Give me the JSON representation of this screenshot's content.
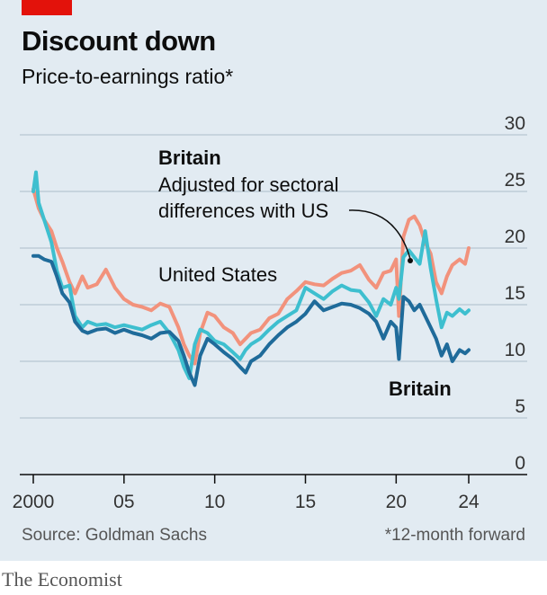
{
  "header": {
    "title": "Discount down",
    "subtitle": "Price-to-earnings ratio*"
  },
  "footer": {
    "source": "Source: Goldman Sachs",
    "footnote": "*12-month forward",
    "brand": "The Economist"
  },
  "colors": {
    "background": "#e2ebf2",
    "accent_red": "#e3120b",
    "britain": "#1f6b9a",
    "britain_adjusted": "#3ebfcf",
    "united_states": "#f2927c"
  },
  "chart_data": {
    "type": "line",
    "title": "Discount down",
    "subtitle": "Price-to-earnings ratio*",
    "xlabel": "",
    "ylabel": "",
    "xlim": [
      1999.8,
      2024.3
    ],
    "ylim": [
      0,
      30
    ],
    "y_ticks": [
      "0",
      "5",
      "10",
      "15",
      "20",
      "25",
      "30"
    ],
    "x_ticks": [
      {
        "value": 2000,
        "label": "2000"
      },
      {
        "value": 2005,
        "label": "05"
      },
      {
        "value": 2010,
        "label": "10"
      },
      {
        "value": 2015,
        "label": "15"
      },
      {
        "value": 2020,
        "label": "20"
      },
      {
        "value": 2024,
        "label": "24"
      }
    ],
    "grid": true,
    "annotations": {
      "britain_top": "Britain",
      "adjusted": [
        "Adjusted for sectoral",
        "differences with US"
      ],
      "us": "United States",
      "britain_bottom": "Britain"
    },
    "series": [
      {
        "name": "United States",
        "color": "#f2927c",
        "x": [
          2000,
          2000.3,
          2000.6,
          2001,
          2001.3,
          2001.6,
          2002,
          2002.3,
          2002.7,
          2003,
          2003.5,
          2004,
          2004.5,
          2005,
          2005.5,
          2006,
          2006.5,
          2007,
          2007.5,
          2008,
          2008.3,
          2008.6,
          2008.9,
          2009.2,
          2009.6,
          2010,
          2010.5,
          2011,
          2011.4,
          2011.7,
          2012,
          2012.5,
          2013,
          2013.5,
          2014,
          2014.5,
          2015,
          2015.5,
          2016,
          2016.5,
          2017,
          2017.5,
          2018,
          2018.5,
          2018.9,
          2019.3,
          2019.7,
          2020.0,
          2020.15,
          2020.4,
          2020.7,
          2021.0,
          2021.3,
          2021.6,
          2021.9,
          2022.2,
          2022.5,
          2022.8,
          2023.1,
          2023.5,
          2023.8,
          2024.0
        ],
        "y": [
          25.2,
          23.5,
          22.5,
          21.5,
          20.0,
          18.8,
          17.0,
          16.0,
          17.5,
          16.5,
          16.8,
          18.1,
          16.5,
          15.5,
          15.0,
          14.8,
          14.5,
          15.1,
          14.8,
          13.0,
          11.5,
          10.5,
          9.8,
          12.5,
          14.3,
          14.0,
          13.0,
          12.5,
          11.5,
          12.0,
          12.5,
          12.8,
          13.8,
          14.2,
          15.5,
          16.2,
          17.0,
          16.8,
          16.7,
          17.3,
          17.8,
          18.0,
          18.5,
          17.2,
          16.5,
          17.8,
          18.0,
          19.0,
          14.0,
          21.0,
          22.5,
          22.8,
          22.0,
          20.5,
          19.5,
          17.0,
          16.0,
          17.5,
          18.5,
          19.0,
          18.6,
          20.0
        ]
      },
      {
        "name": "Britain, adjusted for sectoral differences with US",
        "color": "#3ebfcf",
        "x": [
          2000,
          2000.15,
          2000.3,
          2000.6,
          2001,
          2001.3,
          2001.6,
          2002,
          2002.3,
          2002.7,
          2003,
          2003.5,
          2004,
          2004.5,
          2005,
          2005.5,
          2006,
          2006.5,
          2007,
          2007.5,
          2008,
          2008.3,
          2008.6,
          2008.9,
          2009.2,
          2009.6,
          2010,
          2010.5,
          2011,
          2011.4,
          2011.7,
          2012,
          2012.5,
          2013,
          2013.5,
          2014,
          2014.5,
          2015,
          2015.5,
          2016,
          2016.5,
          2017,
          2017.5,
          2018,
          2018.5,
          2018.9,
          2019.3,
          2019.7,
          2020.0,
          2020.15,
          2020.4,
          2020.7,
          2021.0,
          2021.3,
          2021.6,
          2021.9,
          2022.2,
          2022.5,
          2022.8,
          2023.1,
          2023.5,
          2023.8,
          2024.0
        ],
        "y": [
          25.0,
          26.7,
          24.0,
          22.5,
          20.5,
          18.0,
          16.5,
          16.7,
          14.0,
          13.0,
          13.5,
          13.2,
          13.3,
          13.0,
          13.2,
          13.0,
          12.8,
          13.2,
          13.5,
          12.5,
          11.0,
          9.5,
          8.5,
          11.5,
          12.8,
          12.5,
          11.8,
          11.5,
          10.8,
          10.2,
          11.0,
          11.5,
          12.0,
          12.8,
          13.5,
          14.0,
          14.5,
          16.5,
          16.0,
          15.5,
          16.2,
          16.7,
          16.3,
          16.2,
          15.2,
          14.0,
          15.5,
          15.0,
          16.5,
          15.5,
          19.2,
          19.8,
          19.2,
          18.6,
          21.5,
          18.2,
          15.5,
          13.0,
          14.3,
          14.0,
          14.6,
          14.2,
          14.5
        ]
      },
      {
        "name": "Britain",
        "color": "#1f6b9a",
        "x": [
          2000,
          2000.3,
          2000.6,
          2001,
          2001.3,
          2001.6,
          2002,
          2002.3,
          2002.7,
          2003,
          2003.5,
          2004,
          2004.5,
          2005,
          2005.5,
          2006,
          2006.5,
          2007,
          2007.5,
          2008,
          2008.3,
          2008.6,
          2008.9,
          2009.2,
          2009.6,
          2010,
          2010.5,
          2011,
          2011.4,
          2011.7,
          2012,
          2012.5,
          2013,
          2013.5,
          2014,
          2014.5,
          2015,
          2015.5,
          2016,
          2016.5,
          2017,
          2017.5,
          2018,
          2018.5,
          2018.9,
          2019.3,
          2019.7,
          2020.0,
          2020.15,
          2020.4,
          2020.7,
          2021.0,
          2021.3,
          2021.6,
          2021.9,
          2022.2,
          2022.5,
          2022.8,
          2023.1,
          2023.5,
          2023.8,
          2024.0
        ],
        "y": [
          19.3,
          19.3,
          19.0,
          18.8,
          17.5,
          16.0,
          15.2,
          13.5,
          12.7,
          12.5,
          12.8,
          12.9,
          12.5,
          12.8,
          12.5,
          12.3,
          12.0,
          12.5,
          12.6,
          11.8,
          10.5,
          9.0,
          7.9,
          10.5,
          12.0,
          11.5,
          10.8,
          10.2,
          9.5,
          9.0,
          10.0,
          10.5,
          11.5,
          12.3,
          13.0,
          13.5,
          14.2,
          15.3,
          14.5,
          14.8,
          15.1,
          15.0,
          14.7,
          14.2,
          13.5,
          12.0,
          13.5,
          13.0,
          10.2,
          15.7,
          15.3,
          14.5,
          15.0,
          14.0,
          13.0,
          12.0,
          10.5,
          11.5,
          10.0,
          11.0,
          10.7,
          11.0
        ]
      }
    ]
  }
}
